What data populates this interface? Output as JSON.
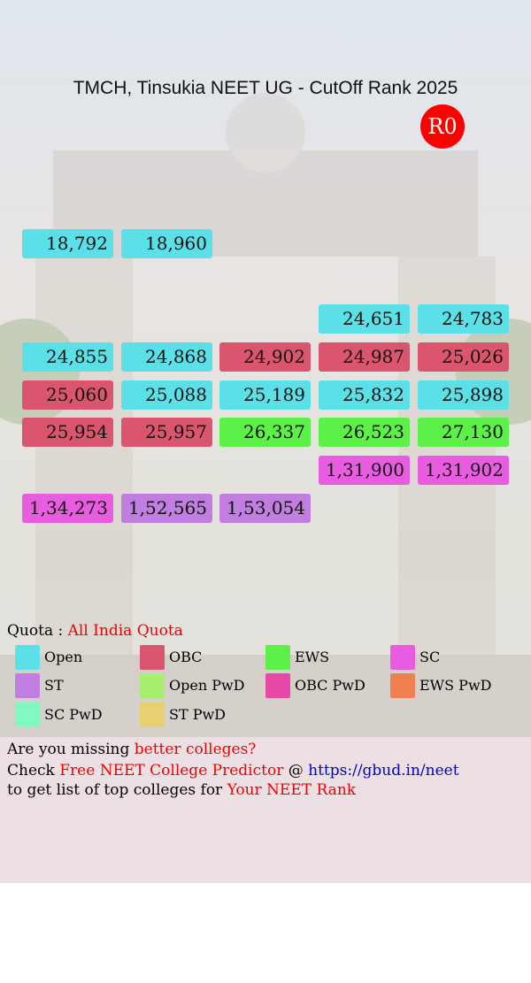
{
  "title": "TMCH, Tinsukia NEET UG - CutOff Rank 2025",
  "round": "R0",
  "rows": [
    [
      {
        "rank": "18,792",
        "color": "#5ce0e8"
      },
      {
        "rank": "18,960",
        "color": "#5ce0e8"
      },
      null,
      null,
      null
    ],
    [
      null,
      null,
      null,
      {
        "rank": "24,651",
        "color": "#5ce0e8"
      },
      {
        "rank": "24,783",
        "color": "#5ce0e8"
      }
    ],
    [
      {
        "rank": "24,855",
        "color": "#5ce0e8"
      },
      {
        "rank": "24,868",
        "color": "#5ce0e8"
      },
      {
        "rank": "24,902",
        "color": "#d9566e"
      },
      {
        "rank": "24,987",
        "color": "#d9566e"
      },
      {
        "rank": "25,026",
        "color": "#d9566e"
      }
    ],
    [
      {
        "rank": "25,060",
        "color": "#d9566e"
      },
      {
        "rank": "25,088",
        "color": "#5ce0e8"
      },
      {
        "rank": "25,189",
        "color": "#5ce0e8"
      },
      {
        "rank": "25,832",
        "color": "#5ce0e8"
      },
      {
        "rank": "25,898",
        "color": "#5ce0e8"
      }
    ],
    [
      {
        "rank": "25,954",
        "color": "#d9566e"
      },
      {
        "rank": "25,957",
        "color": "#d9566e"
      },
      {
        "rank": "26,337",
        "color": "#5cf048"
      },
      {
        "rank": "26,523",
        "color": "#5cf048"
      },
      {
        "rank": "27,130",
        "color": "#5cf048"
      }
    ],
    [
      null,
      null,
      null,
      {
        "rank": "1,31,900",
        "color": "#e85ce0"
      },
      {
        "rank": "1,31,902",
        "color": "#e85ce0"
      }
    ],
    [
      {
        "rank": "1,34,273",
        "color": "#e85ce0"
      },
      {
        "rank": "1,52,565",
        "color": "#c07ee0"
      },
      {
        "rank": "1,53,054",
        "color": "#c07ee0"
      },
      null,
      null
    ]
  ],
  "quota": {
    "label": "Quota :",
    "value": "All India Quota"
  },
  "legend": [
    {
      "label": "Open",
      "color": "#5ce0e8"
    },
    {
      "label": "OBC",
      "color": "#d9566e"
    },
    {
      "label": "EWS",
      "color": "#5cf048"
    },
    {
      "label": "SC",
      "color": "#e85ce0"
    },
    {
      "label": "ST",
      "color": "#c07ee0"
    },
    {
      "label": "Open PwD",
      "color": "#a8ee70"
    },
    {
      "label": "OBC PwD",
      "color": "#e848a8"
    },
    {
      "label": "EWS PwD",
      "color": "#f08050"
    },
    {
      "label": "SC PwD",
      "color": "#80f8c0"
    },
    {
      "label": "ST PwD",
      "color": "#e8d070"
    }
  ],
  "footer": [
    [
      "Are you missing ",
      "better colleges?"
    ],
    [
      "Check ",
      "Free NEET College Predictor",
      " @ ",
      "https://gbud.in/neet"
    ],
    [
      "to get list of top colleges for ",
      "Your NEET Rank"
    ]
  ]
}
